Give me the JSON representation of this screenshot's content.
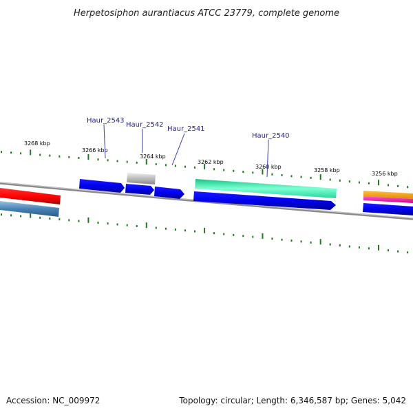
{
  "title": "Herpetosiphon aurantiacus ATCC 23779, complete genome",
  "accession_text": "Accession: NC_009972",
  "genome_info_text": "Topology: circular; Length: 6,346,587 bp; Genes: 5,042",
  "colors": {
    "backbone": "#8a8a8a",
    "tick": "#1f7a1f",
    "cds_blue": "#0000ee",
    "red": "#ff0000",
    "steelblue": "#4682b4",
    "gray": "#b8b8b8",
    "aquamarine": "#30f0b0",
    "orange": "#ffa500",
    "magenta": "#ff2ab4",
    "gene_label": "#1a1aa6"
  },
  "scale": {
    "kbp_labels": [
      "3268 kbp",
      "3266 kbp",
      "3264 kbp",
      "3262 kbp",
      "3260 kbp",
      "3258 kbp",
      "3256 kbp"
    ],
    "range_kbp": [
      3255,
      3269
    ]
  },
  "gene_labels": [
    "Haur_2543",
    "Haur_2542",
    "Haur_2541",
    "Haur_2540"
  ],
  "features": [
    {
      "id": "red-feature",
      "color": "red",
      "ring": "outer-forward"
    },
    {
      "id": "steelblue-feature",
      "color": "steelblue",
      "ring": "inner-reverse"
    },
    {
      "id": "Haur_2543",
      "color": "cds_blue",
      "ring": "outer-forward"
    },
    {
      "id": "Haur_2542-cds",
      "color": "cds_blue",
      "ring": "outer-forward"
    },
    {
      "id": "Haur_2542-gray",
      "color": "gray",
      "ring": "outer-top"
    },
    {
      "id": "Haur_2541",
      "color": "cds_blue",
      "ring": "outer-forward"
    },
    {
      "id": "Haur_2540-aqua",
      "color": "aquamarine",
      "ring": "outer-top"
    },
    {
      "id": "Haur_2540-cds",
      "color": "cds_blue",
      "ring": "outer-forward"
    },
    {
      "id": "right-orange",
      "color": "orange",
      "ring": "outer-top"
    },
    {
      "id": "right-magenta",
      "color": "magenta",
      "ring": "outer-top"
    },
    {
      "id": "right-cds",
      "color": "cds_blue",
      "ring": "outer-forward"
    }
  ]
}
